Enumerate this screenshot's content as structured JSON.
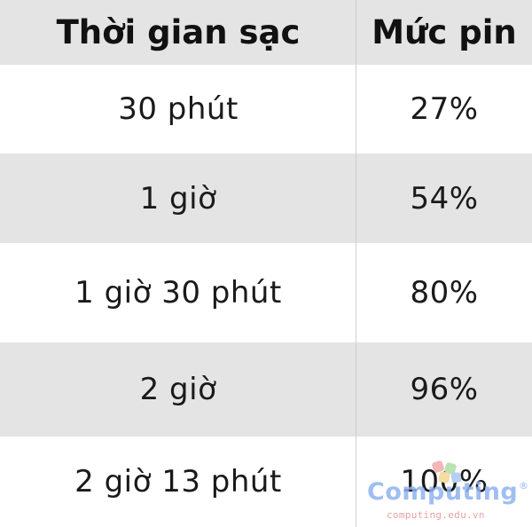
{
  "table": {
    "headers": [
      "Thời gian sạc",
      "Mức pin"
    ],
    "rows": [
      [
        "30 phút",
        "27%"
      ],
      [
        "1 giờ",
        "54%"
      ],
      [
        "1 giờ 30 phút",
        "80%"
      ],
      [
        "2 giờ",
        "96%"
      ],
      [
        "2 giờ 13 phút",
        "100%"
      ]
    ]
  },
  "watermark": {
    "name": "Computing",
    "registered": "®",
    "url": "computing.edu.vn",
    "colors": {
      "name": "#8fb3f2",
      "url": "#e6a2a2"
    }
  },
  "colors": {
    "shaded_row": "#e4e4e4",
    "plain_row": "#ffffff",
    "text": "#111111"
  }
}
